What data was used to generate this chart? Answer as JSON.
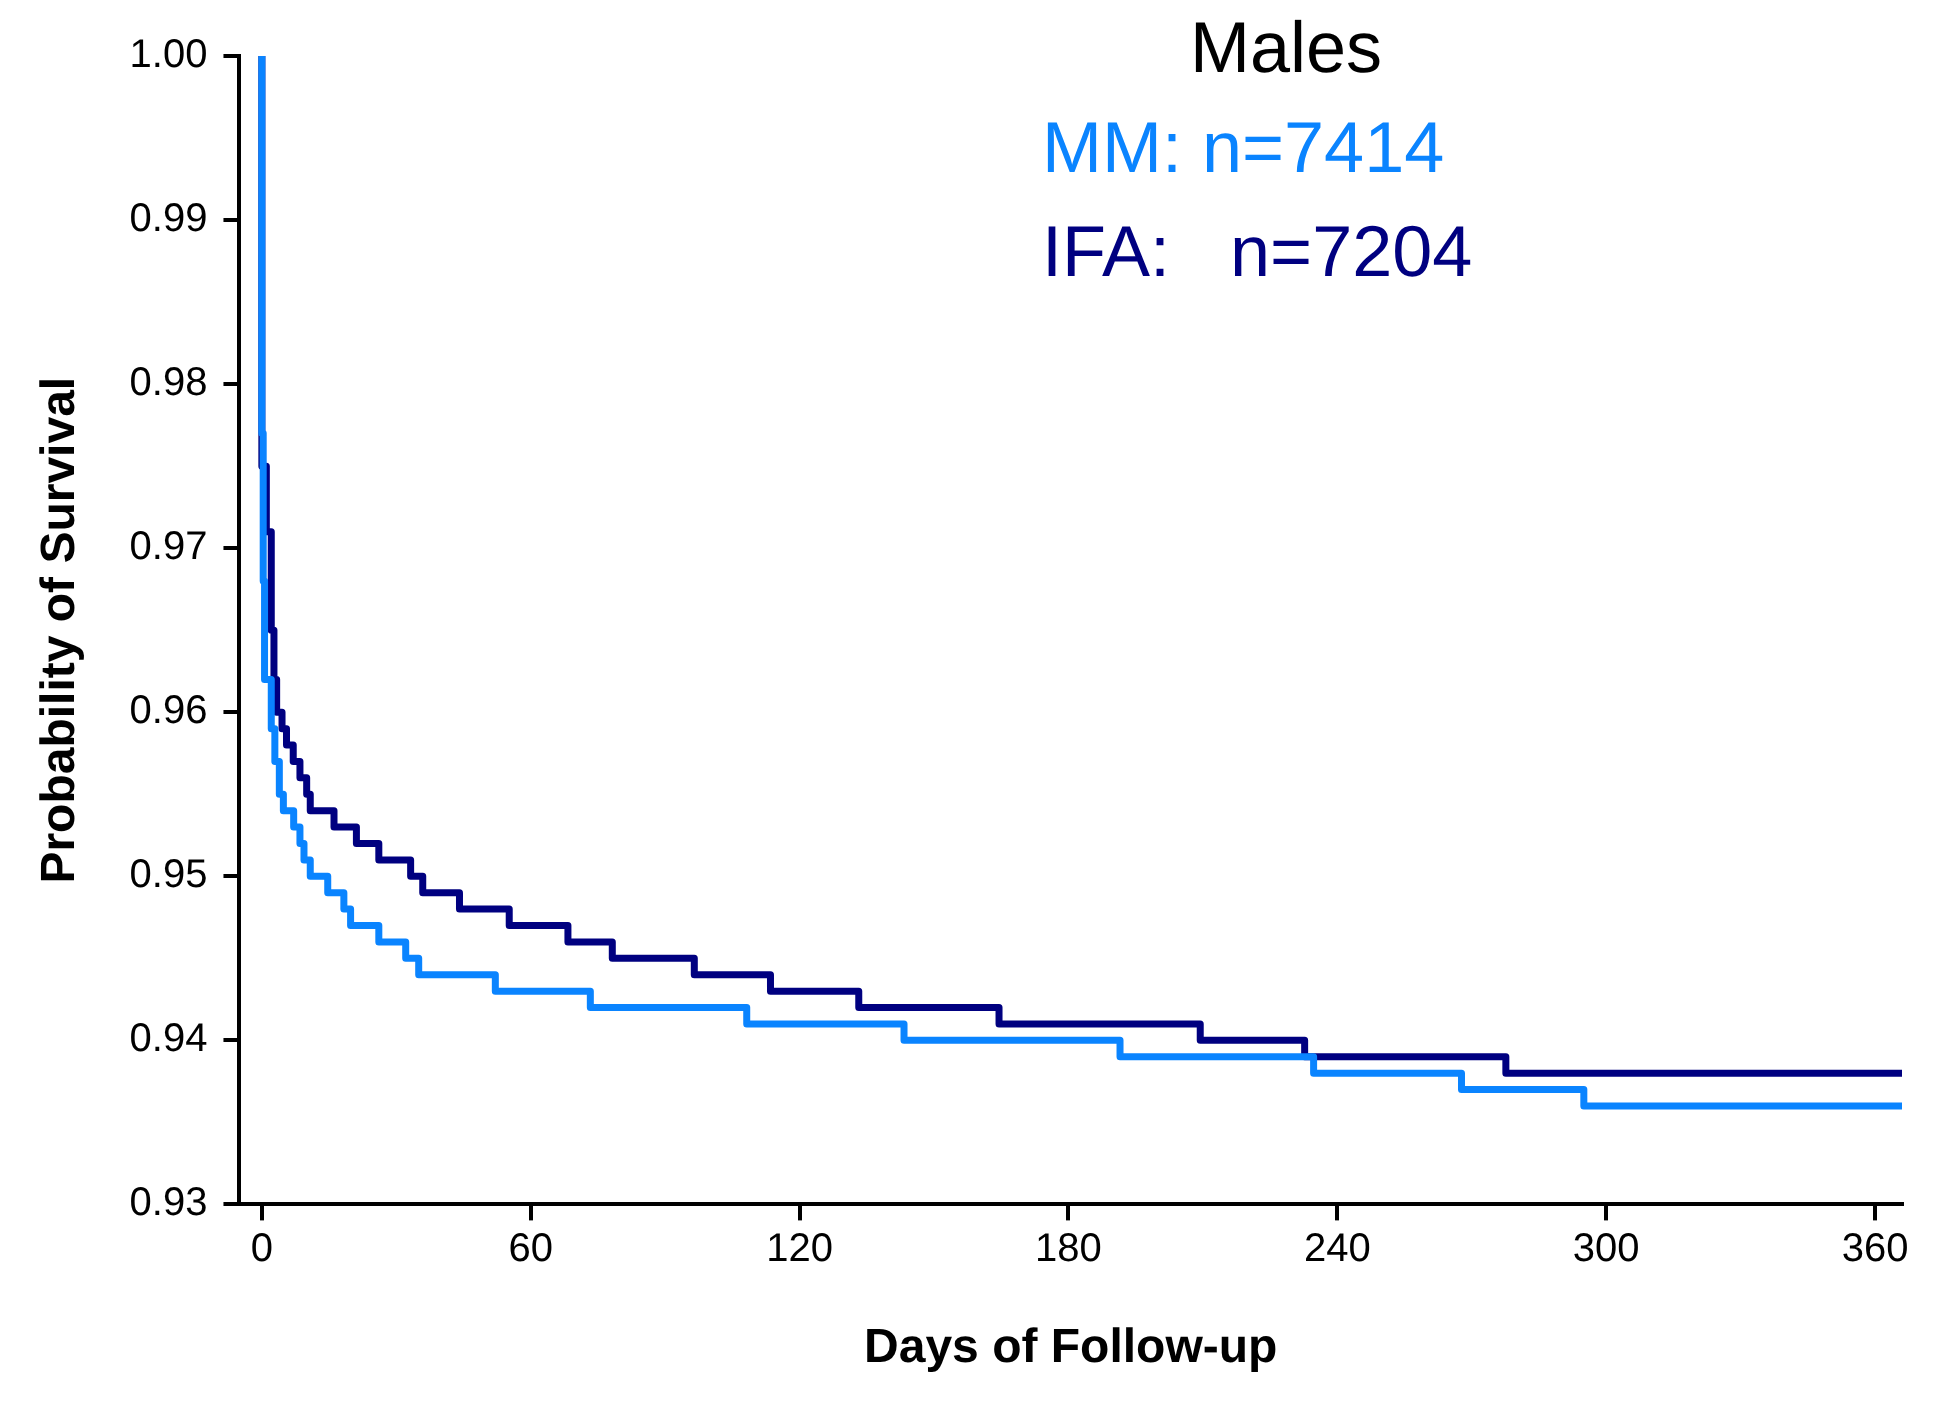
{
  "chart_data": {
    "type": "step",
    "title": "Males",
    "xlabel": "Days of Follow-up",
    "ylabel": "Probability of Survival",
    "xlim": [
      -5,
      366
    ],
    "xticks": [
      0,
      60,
      120,
      180,
      240,
      300,
      360
    ],
    "ylim": [
      0.93,
      1.0
    ],
    "yticks": [
      0.93,
      0.94,
      0.95,
      0.96,
      0.97,
      0.98,
      0.99,
      {
        "value": 1.0,
        "label": "1.00"
      }
    ],
    "grid": false,
    "legend": "top right",
    "marker": "none",
    "line_style": "solid",
    "series": [
      {
        "name": "MM: n=7414",
        "color": "#0a84ff",
        "x": [
          0,
          0.3,
          0.6,
          2.1,
          2.9,
          3.9,
          4.8,
          7.1,
          8.5,
          9.4,
          10.8,
          14.7,
          18.3,
          19.8,
          26.1,
          32.1,
          35,
          52.1,
          73.3,
          108.2,
          143.3,
          191.5,
          234.7,
          267.7,
          295,
          348.3,
          366
        ],
        "values": [
          1.0,
          0.977,
          0.968,
          0.962,
          0.959,
          0.957,
          0.955,
          0.954,
          0.953,
          0.952,
          0.951,
          0.95,
          0.949,
          0.948,
          0.947,
          0.946,
          0.945,
          0.944,
          0.943,
          0.942,
          0.941,
          0.94,
          0.939,
          0.938,
          0.937,
          0.936,
          0.936
        ]
      },
      {
        "name": "IFA:   n=7204",
        "color": "#000080",
        "x": [
          0,
          1,
          2.1,
          2.7,
          3.3,
          4.5,
          5.5,
          7,
          8.5,
          10,
          10.8,
          16.1,
          21.1,
          26.1,
          33.2,
          35.9,
          44.1,
          55.2,
          68.3,
          78.2,
          96.5,
          113.5,
          133.2,
          164.5,
          209.4,
          232.7,
          277.6,
          296.8,
          366
        ],
        "values": [
          1.0,
          0.975,
          0.971,
          0.965,
          0.962,
          0.96,
          0.959,
          0.958,
          0.957,
          0.956,
          0.955,
          0.954,
          0.953,
          0.952,
          0.951,
          0.95,
          0.949,
          0.948,
          0.947,
          0.946,
          0.945,
          0.944,
          0.943,
          0.942,
          0.941,
          0.94,
          0.939,
          0.938,
          0.938
        ]
      }
    ]
  }
}
